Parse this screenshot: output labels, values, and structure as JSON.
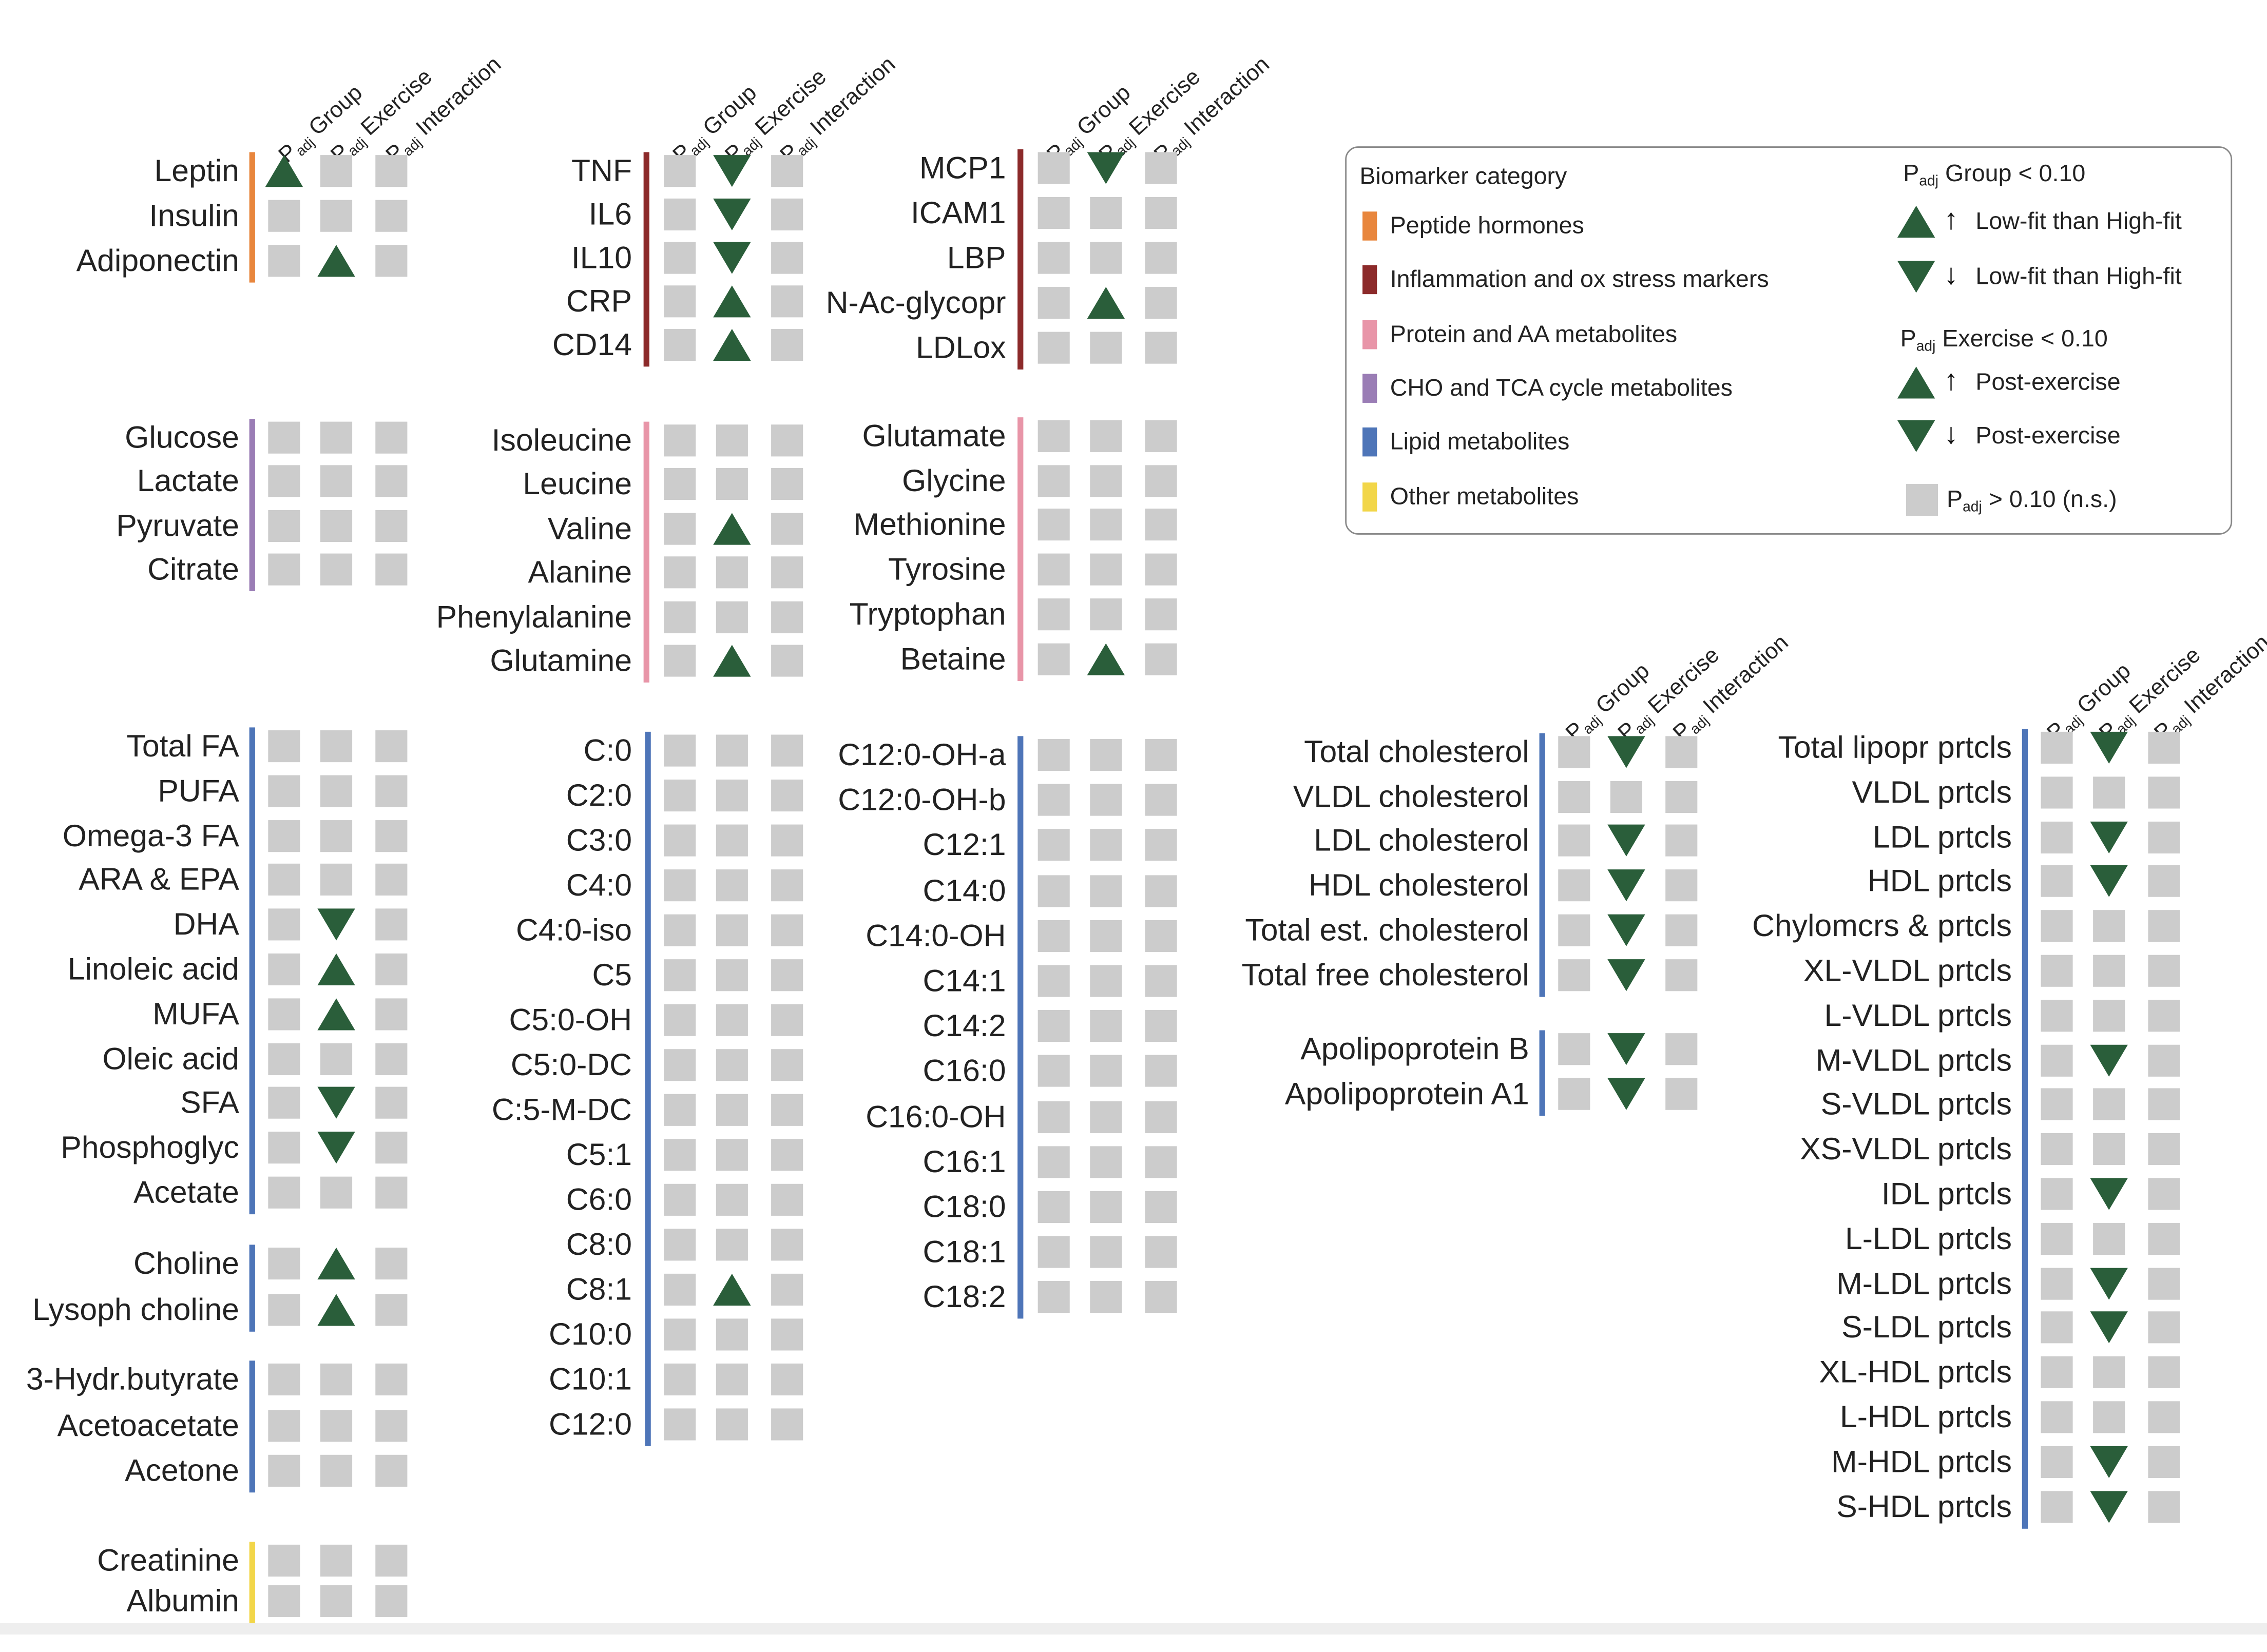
{
  "headers": {
    "p": "P",
    "adj": "adj",
    "group": " Group",
    "exercise": " Exercise",
    "interaction": " Interaction"
  },
  "colors": {
    "peptide": "#e8863d",
    "inflammation": "#8c2a2a",
    "protein": "#e895a8",
    "cho": "#9a7db5",
    "lipid": "#4e75b8",
    "other": "#f2d649",
    "significant": "#2a5e3a",
    "ns": "#cccccc"
  },
  "legend": {
    "title": "Biomarker category",
    "categories": [
      {
        "label": "Peptide hormones",
        "color": "peptide"
      },
      {
        "label": "Inflammation and ox stress markers",
        "color": "inflammation"
      },
      {
        "label": "Protein and AA metabolites",
        "color": "protein"
      },
      {
        "label": "CHO and TCA cycle metabolites",
        "color": "cho"
      },
      {
        "label": "Lipid metabolites",
        "color": "lipid"
      },
      {
        "label": "Other metabolites",
        "color": "other"
      }
    ],
    "group_title": {
      "p": "P",
      "adj": "adj",
      "rest": " Group < 0.10"
    },
    "group_up": "Low-fit than High-fit",
    "group_down": "Low-fit than High-fit",
    "exercise_title": {
      "p": "P",
      "adj": "adj",
      "rest": " Exercise < 0.10"
    },
    "exercise_up": "Post-exercise",
    "exercise_down": "Post-exercise",
    "ns": {
      "p": "P",
      "adj": "adj",
      "rest": " > 0.10 (n.s.)"
    }
  },
  "panels": [
    {
      "id": "peptide",
      "category": "peptide",
      "rows": [
        {
          "label": "Leptin",
          "cells": [
            "up",
            "ns",
            "ns"
          ]
        },
        {
          "label": "Insulin",
          "cells": [
            "ns",
            "ns",
            "ns"
          ]
        },
        {
          "label": "Adiponectin",
          "cells": [
            "ns",
            "up",
            "ns"
          ]
        }
      ]
    },
    {
      "id": "cho",
      "category": "cho",
      "rows": [
        {
          "label": "Glucose",
          "cells": [
            "ns",
            "ns",
            "ns"
          ]
        },
        {
          "label": "Lactate",
          "cells": [
            "ns",
            "ns",
            "ns"
          ]
        },
        {
          "label": "Pyruvate",
          "cells": [
            "ns",
            "ns",
            "ns"
          ]
        },
        {
          "label": "Citrate",
          "cells": [
            "ns",
            "ns",
            "ns"
          ]
        }
      ]
    },
    {
      "id": "fa",
      "category": "lipid",
      "rows": [
        {
          "label": "Total FA",
          "cells": [
            "ns",
            "ns",
            "ns"
          ]
        },
        {
          "label": "PUFA",
          "cells": [
            "ns",
            "ns",
            "ns"
          ]
        },
        {
          "label": "Omega-3 FA",
          "cells": [
            "ns",
            "ns",
            "ns"
          ]
        },
        {
          "label": "ARA & EPA",
          "cells": [
            "ns",
            "ns",
            "ns"
          ]
        },
        {
          "label": "DHA",
          "cells": [
            "ns",
            "down",
            "ns"
          ]
        },
        {
          "label": "Linoleic acid",
          "cells": [
            "ns",
            "up",
            "ns"
          ]
        },
        {
          "label": "MUFA",
          "cells": [
            "ns",
            "up",
            "ns"
          ]
        },
        {
          "label": "Oleic acid",
          "cells": [
            "ns",
            "ns",
            "ns"
          ]
        },
        {
          "label": "SFA",
          "cells": [
            "ns",
            "down",
            "ns"
          ]
        },
        {
          "label": "Phosphoglyc",
          "cells": [
            "ns",
            "down",
            "ns"
          ]
        },
        {
          "label": "Acetate",
          "cells": [
            "ns",
            "ns",
            "ns"
          ]
        }
      ]
    },
    {
      "id": "choline",
      "category": "lipid",
      "rows": [
        {
          "label": "Choline",
          "cells": [
            "ns",
            "up",
            "ns"
          ]
        },
        {
          "label": "Lysoph choline",
          "cells": [
            "ns",
            "up",
            "ns"
          ]
        }
      ]
    },
    {
      "id": "ketones",
      "category": "lipid",
      "rows": [
        {
          "label": "3-Hydr.butyrate",
          "cells": [
            "ns",
            "ns",
            "ns"
          ]
        },
        {
          "label": "Acetoacetate",
          "cells": [
            "ns",
            "ns",
            "ns"
          ]
        },
        {
          "label": "Acetone",
          "cells": [
            "ns",
            "ns",
            "ns"
          ]
        }
      ]
    },
    {
      "id": "other",
      "category": "other",
      "rows": [
        {
          "label": "Creatinine",
          "cells": [
            "ns",
            "ns",
            "ns"
          ]
        },
        {
          "label": "Albumin",
          "cells": [
            "ns",
            "ns",
            "ns"
          ]
        }
      ]
    },
    {
      "id": "inflam1",
      "category": "inflammation",
      "rows": [
        {
          "label": "TNF",
          "cells": [
            "ns",
            "down",
            "ns"
          ]
        },
        {
          "label": "IL6",
          "cells": [
            "ns",
            "down",
            "ns"
          ]
        },
        {
          "label": "IL10",
          "cells": [
            "ns",
            "down",
            "ns"
          ]
        },
        {
          "label": "CRP",
          "cells": [
            "ns",
            "up",
            "ns"
          ]
        },
        {
          "label": "CD14",
          "cells": [
            "ns",
            "up",
            "ns"
          ]
        }
      ]
    },
    {
      "id": "aa1",
      "category": "protein",
      "rows": [
        {
          "label": "Isoleucine",
          "cells": [
            "ns",
            "ns",
            "ns"
          ]
        },
        {
          "label": "Leucine",
          "cells": [
            "ns",
            "ns",
            "ns"
          ]
        },
        {
          "label": "Valine",
          "cells": [
            "ns",
            "up",
            "ns"
          ]
        },
        {
          "label": "Alanine",
          "cells": [
            "ns",
            "ns",
            "ns"
          ]
        },
        {
          "label": "Phenylalanine",
          "cells": [
            "ns",
            "ns",
            "ns"
          ]
        },
        {
          "label": "Glutamine",
          "cells": [
            "ns",
            "up",
            "ns"
          ]
        }
      ]
    },
    {
      "id": "acyl1",
      "category": "lipid",
      "rows": [
        {
          "label": "C:0",
          "cells": [
            "ns",
            "ns",
            "ns"
          ]
        },
        {
          "label": "C2:0",
          "cells": [
            "ns",
            "ns",
            "ns"
          ]
        },
        {
          "label": "C3:0",
          "cells": [
            "ns",
            "ns",
            "ns"
          ]
        },
        {
          "label": "C4:0",
          "cells": [
            "ns",
            "ns",
            "ns"
          ]
        },
        {
          "label": "C4:0-iso",
          "cells": [
            "ns",
            "ns",
            "ns"
          ]
        },
        {
          "label": "C5",
          "cells": [
            "ns",
            "ns",
            "ns"
          ]
        },
        {
          "label": "C5:0-OH",
          "cells": [
            "ns",
            "ns",
            "ns"
          ]
        },
        {
          "label": "C5:0-DC",
          "cells": [
            "ns",
            "ns",
            "ns"
          ]
        },
        {
          "label": "C:5-M-DC",
          "cells": [
            "ns",
            "ns",
            "ns"
          ]
        },
        {
          "label": "C5:1",
          "cells": [
            "ns",
            "ns",
            "ns"
          ]
        },
        {
          "label": "C6:0",
          "cells": [
            "ns",
            "ns",
            "ns"
          ]
        },
        {
          "label": "C8:0",
          "cells": [
            "ns",
            "ns",
            "ns"
          ]
        },
        {
          "label": "C8:1",
          "cells": [
            "ns",
            "up",
            "ns"
          ]
        },
        {
          "label": "C10:0",
          "cells": [
            "ns",
            "ns",
            "ns"
          ]
        },
        {
          "label": "C10:1",
          "cells": [
            "ns",
            "ns",
            "ns"
          ]
        },
        {
          "label": "C12:0",
          "cells": [
            "ns",
            "ns",
            "ns"
          ]
        }
      ]
    },
    {
      "id": "inflam2",
      "category": "inflammation",
      "rows": [
        {
          "label": "MCP1",
          "cells": [
            "ns",
            "down",
            "ns"
          ]
        },
        {
          "label": "ICAM1",
          "cells": [
            "ns",
            "ns",
            "ns"
          ]
        },
        {
          "label": "LBP",
          "cells": [
            "ns",
            "ns",
            "ns"
          ]
        },
        {
          "label": "N-Ac-glycopr",
          "cells": [
            "ns",
            "up",
            "ns"
          ]
        },
        {
          "label": "LDLox",
          "cells": [
            "ns",
            "ns",
            "ns"
          ]
        }
      ]
    },
    {
      "id": "aa2",
      "category": "protein",
      "rows": [
        {
          "label": "Glutamate",
          "cells": [
            "ns",
            "ns",
            "ns"
          ]
        },
        {
          "label": "Glycine",
          "cells": [
            "ns",
            "ns",
            "ns"
          ]
        },
        {
          "label": "Methionine",
          "cells": [
            "ns",
            "ns",
            "ns"
          ]
        },
        {
          "label": "Tyrosine",
          "cells": [
            "ns",
            "ns",
            "ns"
          ]
        },
        {
          "label": "Tryptophan",
          "cells": [
            "ns",
            "ns",
            "ns"
          ]
        },
        {
          "label": "Betaine",
          "cells": [
            "ns",
            "up",
            "ns"
          ]
        }
      ]
    },
    {
      "id": "acyl2",
      "category": "lipid",
      "rows": [
        {
          "label": "C12:0-OH-a",
          "cells": [
            "ns",
            "ns",
            "ns"
          ]
        },
        {
          "label": "C12:0-OH-b",
          "cells": [
            "ns",
            "ns",
            "ns"
          ]
        },
        {
          "label": "C12:1",
          "cells": [
            "ns",
            "ns",
            "ns"
          ]
        },
        {
          "label": "C14:0",
          "cells": [
            "ns",
            "ns",
            "ns"
          ]
        },
        {
          "label": "C14:0-OH",
          "cells": [
            "ns",
            "ns",
            "ns"
          ]
        },
        {
          "label": "C14:1",
          "cells": [
            "ns",
            "ns",
            "ns"
          ]
        },
        {
          "label": "C14:2",
          "cells": [
            "ns",
            "ns",
            "ns"
          ]
        },
        {
          "label": "C16:0",
          "cells": [
            "ns",
            "ns",
            "ns"
          ]
        },
        {
          "label": "C16:0-OH",
          "cells": [
            "ns",
            "ns",
            "ns"
          ]
        },
        {
          "label": "C16:1",
          "cells": [
            "ns",
            "ns",
            "ns"
          ]
        },
        {
          "label": "C18:0",
          "cells": [
            "ns",
            "ns",
            "ns"
          ]
        },
        {
          "label": "C18:1",
          "cells": [
            "ns",
            "ns",
            "ns"
          ]
        },
        {
          "label": "C18:2",
          "cells": [
            "ns",
            "ns",
            "ns"
          ]
        }
      ]
    },
    {
      "id": "chol",
      "category": "lipid",
      "rows": [
        {
          "label": "Total cholesterol",
          "cells": [
            "ns",
            "down",
            "ns"
          ]
        },
        {
          "label": "VLDL cholesterol",
          "cells": [
            "ns",
            "ns",
            "ns"
          ]
        },
        {
          "label": "LDL cholesterol",
          "cells": [
            "ns",
            "down",
            "ns"
          ]
        },
        {
          "label": "HDL cholesterol",
          "cells": [
            "ns",
            "down",
            "ns"
          ]
        },
        {
          "label": "Total est. cholesterol",
          "cells": [
            "ns",
            "down",
            "ns"
          ]
        },
        {
          "label": "Total free cholesterol",
          "cells": [
            "ns",
            "down",
            "ns"
          ]
        }
      ]
    },
    {
      "id": "apo",
      "category": "lipid",
      "rows": [
        {
          "label": "Apolipoprotein B",
          "cells": [
            "ns",
            "down",
            "ns"
          ]
        },
        {
          "label": "Apolipoprotein A1",
          "cells": [
            "ns",
            "down",
            "ns"
          ]
        }
      ]
    },
    {
      "id": "lipo",
      "category": "lipid",
      "rows": [
        {
          "label": "Total lipopr prtcls",
          "cells": [
            "ns",
            "down",
            "ns"
          ]
        },
        {
          "label": "VLDL prtcls",
          "cells": [
            "ns",
            "ns",
            "ns"
          ]
        },
        {
          "label": "LDL prtcls",
          "cells": [
            "ns",
            "down",
            "ns"
          ]
        },
        {
          "label": "HDL prtcls",
          "cells": [
            "ns",
            "down",
            "ns"
          ]
        },
        {
          "label": "Chylomcrs & prtcls",
          "cells": [
            "ns",
            "ns",
            "ns"
          ]
        },
        {
          "label": "XL-VLDL prtcls",
          "cells": [
            "ns",
            "ns",
            "ns"
          ]
        },
        {
          "label": "L-VLDL prtcls",
          "cells": [
            "ns",
            "ns",
            "ns"
          ]
        },
        {
          "label": "M-VLDL prtcls",
          "cells": [
            "ns",
            "down",
            "ns"
          ]
        },
        {
          "label": "S-VLDL prtcls",
          "cells": [
            "ns",
            "ns",
            "ns"
          ]
        },
        {
          "label": "XS-VLDL prtcls",
          "cells": [
            "ns",
            "ns",
            "ns"
          ]
        },
        {
          "label": "IDL prtcls",
          "cells": [
            "ns",
            "down",
            "ns"
          ]
        },
        {
          "label": "L-LDL prtcls",
          "cells": [
            "ns",
            "ns",
            "ns"
          ]
        },
        {
          "label": "M-LDL prtcls",
          "cells": [
            "ns",
            "down",
            "ns"
          ]
        },
        {
          "label": "S-LDL prtcls",
          "cells": [
            "ns",
            "down",
            "ns"
          ]
        },
        {
          "label": "XL-HDL prtcls",
          "cells": [
            "ns",
            "ns",
            "ns"
          ]
        },
        {
          "label": "L-HDL prtcls",
          "cells": [
            "ns",
            "ns",
            "ns"
          ]
        },
        {
          "label": "M-HDL prtcls",
          "cells": [
            "ns",
            "down",
            "ns"
          ]
        },
        {
          "label": "S-HDL prtcls",
          "cells": [
            "ns",
            "down",
            "ns"
          ]
        }
      ]
    }
  ]
}
